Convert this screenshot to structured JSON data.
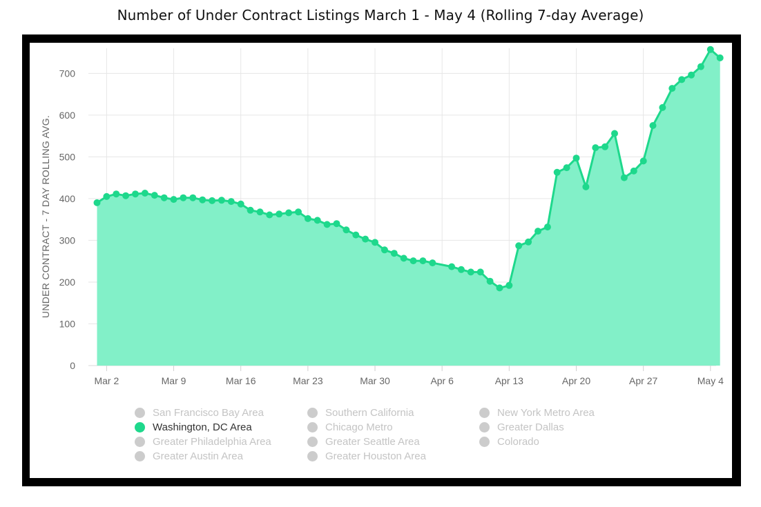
{
  "title": "Number of Under Contract Listings March 1 - May 4 (Rolling 7-day Average)",
  "colors": {
    "line": "#1ed88c",
    "fill": "#82f0c8",
    "inactive_dot": "#cccccc",
    "inactive_text": "#c4c4c4",
    "active_text": "#333333"
  },
  "legend": [
    {
      "label": "San Francisco Bay Area",
      "active": false
    },
    {
      "label": "Southern California",
      "active": false
    },
    {
      "label": "New York Metro Area",
      "active": false
    },
    {
      "label": "Washington, DC Area",
      "active": true
    },
    {
      "label": "Chicago Metro",
      "active": false
    },
    {
      "label": "Greater Dallas",
      "active": false
    },
    {
      "label": "Greater Philadelphia Area",
      "active": false
    },
    {
      "label": "Greater Seattle Area",
      "active": false
    },
    {
      "label": "Colorado",
      "active": false
    },
    {
      "label": "Greater Austin Area",
      "active": false
    },
    {
      "label": "Greater Houston Area",
      "active": false
    }
  ],
  "chart_data": {
    "type": "area",
    "title": "Number of Under Contract Listings March 1 - May 4 (Rolling 7-day Average)",
    "ylabel": "UNDER CONTRACT - 7 DAY ROLLING AVG.",
    "xlabel": "",
    "ylim": [
      0,
      760
    ],
    "yticks": [
      0,
      100,
      200,
      300,
      400,
      500,
      600,
      700
    ],
    "xticks": [
      {
        "label": "Mar 2",
        "date": "2020-03-02"
      },
      {
        "label": "Mar 9",
        "date": "2020-03-09"
      },
      {
        "label": "Mar 16",
        "date": "2020-03-16"
      },
      {
        "label": "Mar 23",
        "date": "2020-03-23"
      },
      {
        "label": "Mar 30",
        "date": "2020-03-30"
      },
      {
        "label": "Apr 6",
        "date": "2020-04-06"
      },
      {
        "label": "Apr 13",
        "date": "2020-04-13"
      },
      {
        "label": "Apr 20",
        "date": "2020-04-20"
      },
      {
        "label": "Apr 27",
        "date": "2020-04-27"
      },
      {
        "label": "May 4",
        "date": "2020-05-04"
      }
    ],
    "grid": true,
    "legend_position": "bottom",
    "series": [
      {
        "name": "Washington, DC Area",
        "points": [
          [
            "2020-03-01",
            390
          ],
          [
            "2020-03-02",
            405
          ],
          [
            "2020-03-03",
            411
          ],
          [
            "2020-03-04",
            407
          ],
          [
            "2020-03-05",
            411
          ],
          [
            "2020-03-06",
            413
          ],
          [
            "2020-03-07",
            408
          ],
          [
            "2020-03-08",
            402
          ],
          [
            "2020-03-09",
            398
          ],
          [
            "2020-03-10",
            402
          ],
          [
            "2020-03-11",
            402
          ],
          [
            "2020-03-12",
            397
          ],
          [
            "2020-03-13",
            395
          ],
          [
            "2020-03-14",
            396
          ],
          [
            "2020-03-15",
            393
          ],
          [
            "2020-03-16",
            387
          ],
          [
            "2020-03-17",
            372
          ],
          [
            "2020-03-18",
            368
          ],
          [
            "2020-03-19",
            361
          ],
          [
            "2020-03-20",
            363
          ],
          [
            "2020-03-21",
            366
          ],
          [
            "2020-03-22",
            368
          ],
          [
            "2020-03-23",
            352
          ],
          [
            "2020-03-24",
            348
          ],
          [
            "2020-03-25",
            338
          ],
          [
            "2020-03-26",
            340
          ],
          [
            "2020-03-27",
            325
          ],
          [
            "2020-03-28",
            313
          ],
          [
            "2020-03-29",
            303
          ],
          [
            "2020-03-30",
            295
          ],
          [
            "2020-03-31",
            277
          ],
          [
            "2020-04-01",
            269
          ],
          [
            "2020-04-02",
            257
          ],
          [
            "2020-04-03",
            251
          ],
          [
            "2020-04-04",
            251
          ],
          [
            "2020-04-05",
            246
          ],
          [
            "2020-04-07",
            237
          ],
          [
            "2020-04-08",
            230
          ],
          [
            "2020-04-09",
            224
          ],
          [
            "2020-04-10",
            224
          ],
          [
            "2020-04-11",
            202
          ],
          [
            "2020-04-12",
            186
          ],
          [
            "2020-04-13",
            192
          ],
          [
            "2020-04-14",
            287
          ],
          [
            "2020-04-15",
            296
          ],
          [
            "2020-04-16",
            322
          ],
          [
            "2020-04-17",
            332
          ],
          [
            "2020-04-18",
            463
          ],
          [
            "2020-04-19",
            474
          ],
          [
            "2020-04-20",
            497
          ],
          [
            "2020-04-21",
            428
          ],
          [
            "2020-04-22",
            522
          ],
          [
            "2020-04-23",
            524
          ],
          [
            "2020-04-24",
            556
          ],
          [
            "2020-04-25",
            450
          ],
          [
            "2020-04-26",
            466
          ],
          [
            "2020-04-27",
            490
          ],
          [
            "2020-04-28",
            575
          ],
          [
            "2020-04-29",
            618
          ],
          [
            "2020-04-30",
            664
          ],
          [
            "2020-05-01",
            685
          ],
          [
            "2020-05-02",
            696
          ],
          [
            "2020-05-03",
            716
          ],
          [
            "2020-05-04",
            757
          ],
          [
            "2020-05-05",
            737
          ]
        ]
      }
    ]
  }
}
